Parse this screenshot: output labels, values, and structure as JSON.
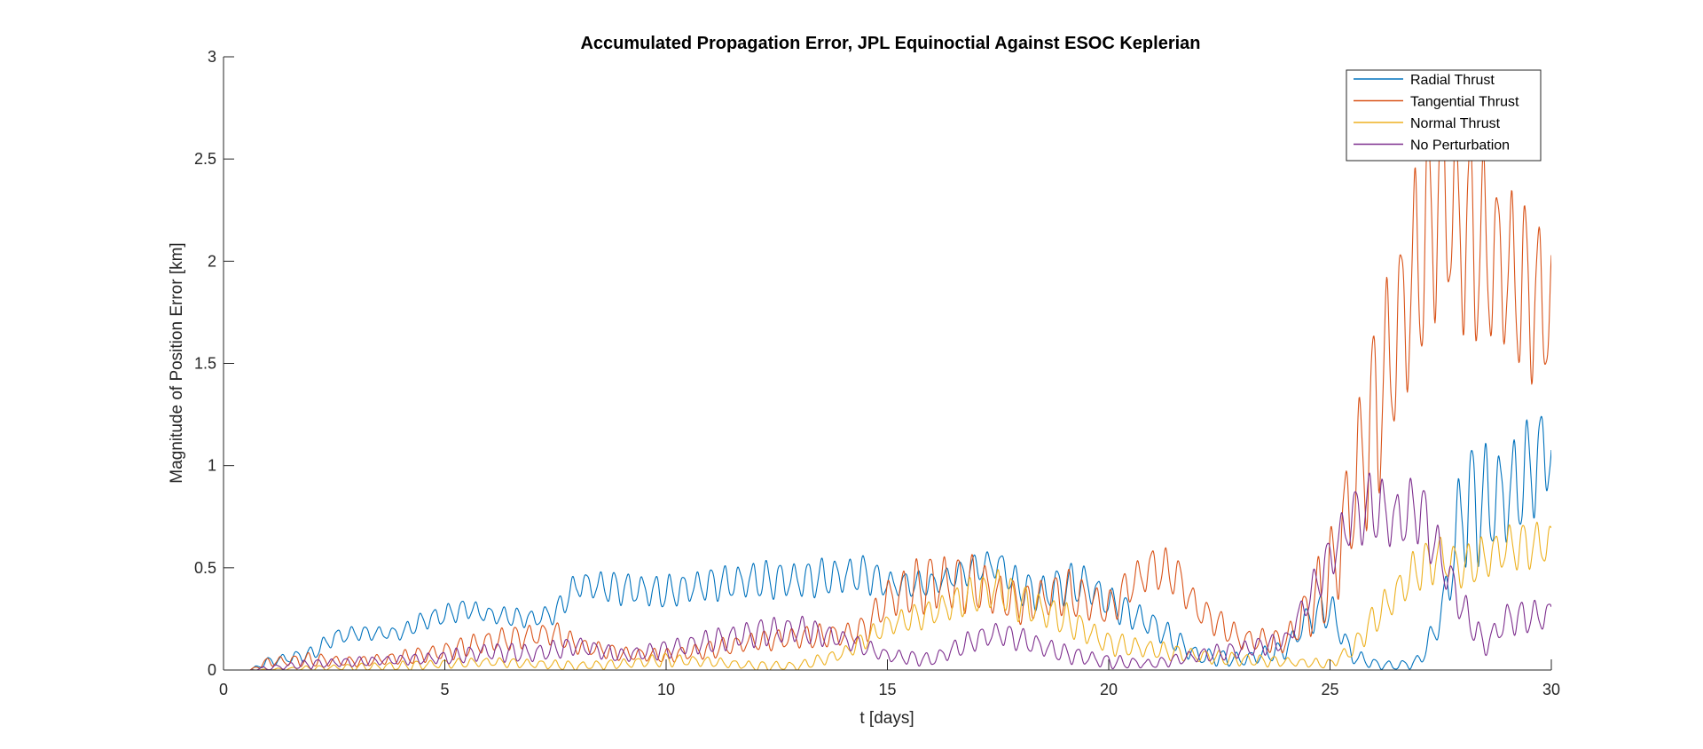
{
  "chart_data": {
    "type": "line",
    "title": "Accumulated Propagation Error, JPL Equinoctial Against ESOC Keplerian",
    "xlabel": "t [days]",
    "ylabel": "Magnitude of Position Error [km]",
    "xlim": [
      0,
      30
    ],
    "ylim": [
      0,
      3
    ],
    "xticks": [
      0,
      5,
      10,
      15,
      20,
      25,
      30
    ],
    "yticks": [
      0,
      0.5,
      1,
      1.5,
      2,
      2.5,
      3
    ],
    "xtick_labels": [
      "0",
      "5",
      "10",
      "15",
      "20",
      "25",
      "30"
    ],
    "ytick_labels": [
      "0",
      "0.5",
      "1",
      "1.5",
      "2",
      "2.5",
      "3"
    ],
    "grid": false,
    "legend_position": "top-right",
    "oscillation_cycles_per_day": 3.2,
    "series": [
      {
        "name": "Radial Thrust",
        "color": "#0072BD",
        "x": [
          0.6,
          1,
          2,
          2.5,
          3,
          4,
          4.5,
          5,
          5.5,
          6,
          7,
          7.5,
          8,
          9,
          10,
          11,
          12,
          13,
          14,
          14.5,
          15,
          16,
          17,
          17.5,
          18,
          18.5,
          19,
          19.5,
          20,
          21,
          22,
          23,
          24,
          24.5,
          25,
          25.5,
          26,
          26.5,
          27,
          27.5,
          28,
          29,
          30
        ],
        "mid": [
          0.0,
          0.04,
          0.08,
          0.16,
          0.18,
          0.18,
          0.24,
          0.27,
          0.3,
          0.27,
          0.25,
          0.28,
          0.42,
          0.4,
          0.38,
          0.42,
          0.44,
          0.44,
          0.46,
          0.47,
          0.42,
          0.42,
          0.5,
          0.52,
          0.4,
          0.37,
          0.42,
          0.42,
          0.33,
          0.22,
          0.07,
          0.05,
          0.1,
          0.25,
          0.3,
          0.07,
          0.03,
          0.02,
          0.04,
          0.25,
          0.8,
          0.85,
          1.1
        ],
        "amp": [
          0.0,
          0.02,
          0.03,
          0.04,
          0.03,
          0.03,
          0.04,
          0.05,
          0.04,
          0.04,
          0.04,
          0.05,
          0.06,
          0.07,
          0.07,
          0.07,
          0.08,
          0.08,
          0.08,
          0.08,
          0.06,
          0.05,
          0.06,
          0.07,
          0.07,
          0.09,
          0.09,
          0.08,
          0.07,
          0.06,
          0.04,
          0.03,
          0.04,
          0.07,
          0.08,
          0.04,
          0.02,
          0.02,
          0.03,
          0.07,
          0.28,
          0.22,
          0.22
        ]
      },
      {
        "name": "Tangential Thrust",
        "color": "#D95319",
        "x": [
          0.6,
          1,
          2,
          3,
          4,
          5,
          6,
          7,
          7.5,
          8,
          9,
          10,
          11,
          12,
          13,
          14,
          14.5,
          15,
          16,
          17,
          18,
          19,
          20,
          20.5,
          21,
          21.5,
          22,
          23,
          24,
          25,
          26,
          27,
          27.5,
          28,
          29,
          30
        ],
        "mid": [
          0.0,
          0.04,
          0.05,
          0.04,
          0.06,
          0.09,
          0.14,
          0.17,
          0.18,
          0.12,
          0.08,
          0.07,
          0.1,
          0.14,
          0.16,
          0.17,
          0.2,
          0.35,
          0.43,
          0.42,
          0.32,
          0.38,
          0.3,
          0.42,
          0.5,
          0.47,
          0.3,
          0.15,
          0.14,
          0.45,
          1.25,
          2.0,
          2.35,
          2.15,
          1.95,
          1.75
        ],
        "amp": [
          0.0,
          0.02,
          0.03,
          0.02,
          0.03,
          0.04,
          0.05,
          0.05,
          0.05,
          0.04,
          0.03,
          0.03,
          0.04,
          0.04,
          0.05,
          0.05,
          0.06,
          0.09,
          0.13,
          0.12,
          0.08,
          0.1,
          0.08,
          0.08,
          0.1,
          0.09,
          0.07,
          0.05,
          0.05,
          0.2,
          0.4,
          0.45,
          0.5,
          0.45,
          0.38,
          0.35
        ]
      },
      {
        "name": "Normal Thrust",
        "color": "#EDB120",
        "x": [
          0.6,
          2,
          4,
          5,
          6,
          7,
          8,
          9,
          10,
          11,
          12,
          13,
          14,
          15,
          16,
          17,
          17.5,
          18,
          19,
          20,
          21,
          22,
          23,
          24,
          25,
          25.5,
          26,
          27,
          27.5,
          28,
          29,
          30
        ],
        "mid": [
          0.0,
          0.01,
          0.02,
          0.03,
          0.04,
          0.03,
          0.02,
          0.03,
          0.05,
          0.04,
          0.02,
          0.02,
          0.08,
          0.22,
          0.28,
          0.37,
          0.4,
          0.33,
          0.25,
          0.13,
          0.1,
          0.07,
          0.05,
          0.04,
          0.03,
          0.1,
          0.25,
          0.5,
          0.55,
          0.5,
          0.6,
          0.62
        ],
        "amp": [
          0.0,
          0.01,
          0.02,
          0.02,
          0.02,
          0.02,
          0.02,
          0.02,
          0.03,
          0.02,
          0.02,
          0.02,
          0.03,
          0.05,
          0.06,
          0.08,
          0.09,
          0.08,
          0.07,
          0.05,
          0.04,
          0.03,
          0.03,
          0.02,
          0.02,
          0.04,
          0.07,
          0.1,
          0.1,
          0.09,
          0.1,
          0.1
        ]
      },
      {
        "name": "No Perturbation",
        "color": "#7E2F8E",
        "x": [
          0.6,
          1,
          2,
          3,
          4,
          5,
          6,
          7,
          8,
          9,
          10,
          11,
          12,
          13,
          14,
          15,
          16,
          17,
          17.5,
          18,
          19,
          20,
          21,
          22,
          23,
          24,
          25,
          25.5,
          26,
          26.5,
          27,
          28,
          28.5,
          29,
          30
        ],
        "mid": [
          0.0,
          0.01,
          0.03,
          0.04,
          0.05,
          0.06,
          0.09,
          0.08,
          0.12,
          0.07,
          0.1,
          0.14,
          0.18,
          0.2,
          0.15,
          0.07,
          0.05,
          0.15,
          0.18,
          0.15,
          0.08,
          0.04,
          0.03,
          0.07,
          0.1,
          0.14,
          0.55,
          0.75,
          0.8,
          0.73,
          0.8,
          0.3,
          0.12,
          0.25,
          0.27
        ],
        "amp": [
          0.0,
          0.01,
          0.02,
          0.02,
          0.02,
          0.03,
          0.04,
          0.04,
          0.04,
          0.03,
          0.04,
          0.05,
          0.06,
          0.06,
          0.04,
          0.03,
          0.03,
          0.05,
          0.05,
          0.05,
          0.04,
          0.03,
          0.02,
          0.03,
          0.04,
          0.04,
          0.1,
          0.13,
          0.15,
          0.14,
          0.15,
          0.08,
          0.05,
          0.07,
          0.07
        ]
      }
    ]
  }
}
